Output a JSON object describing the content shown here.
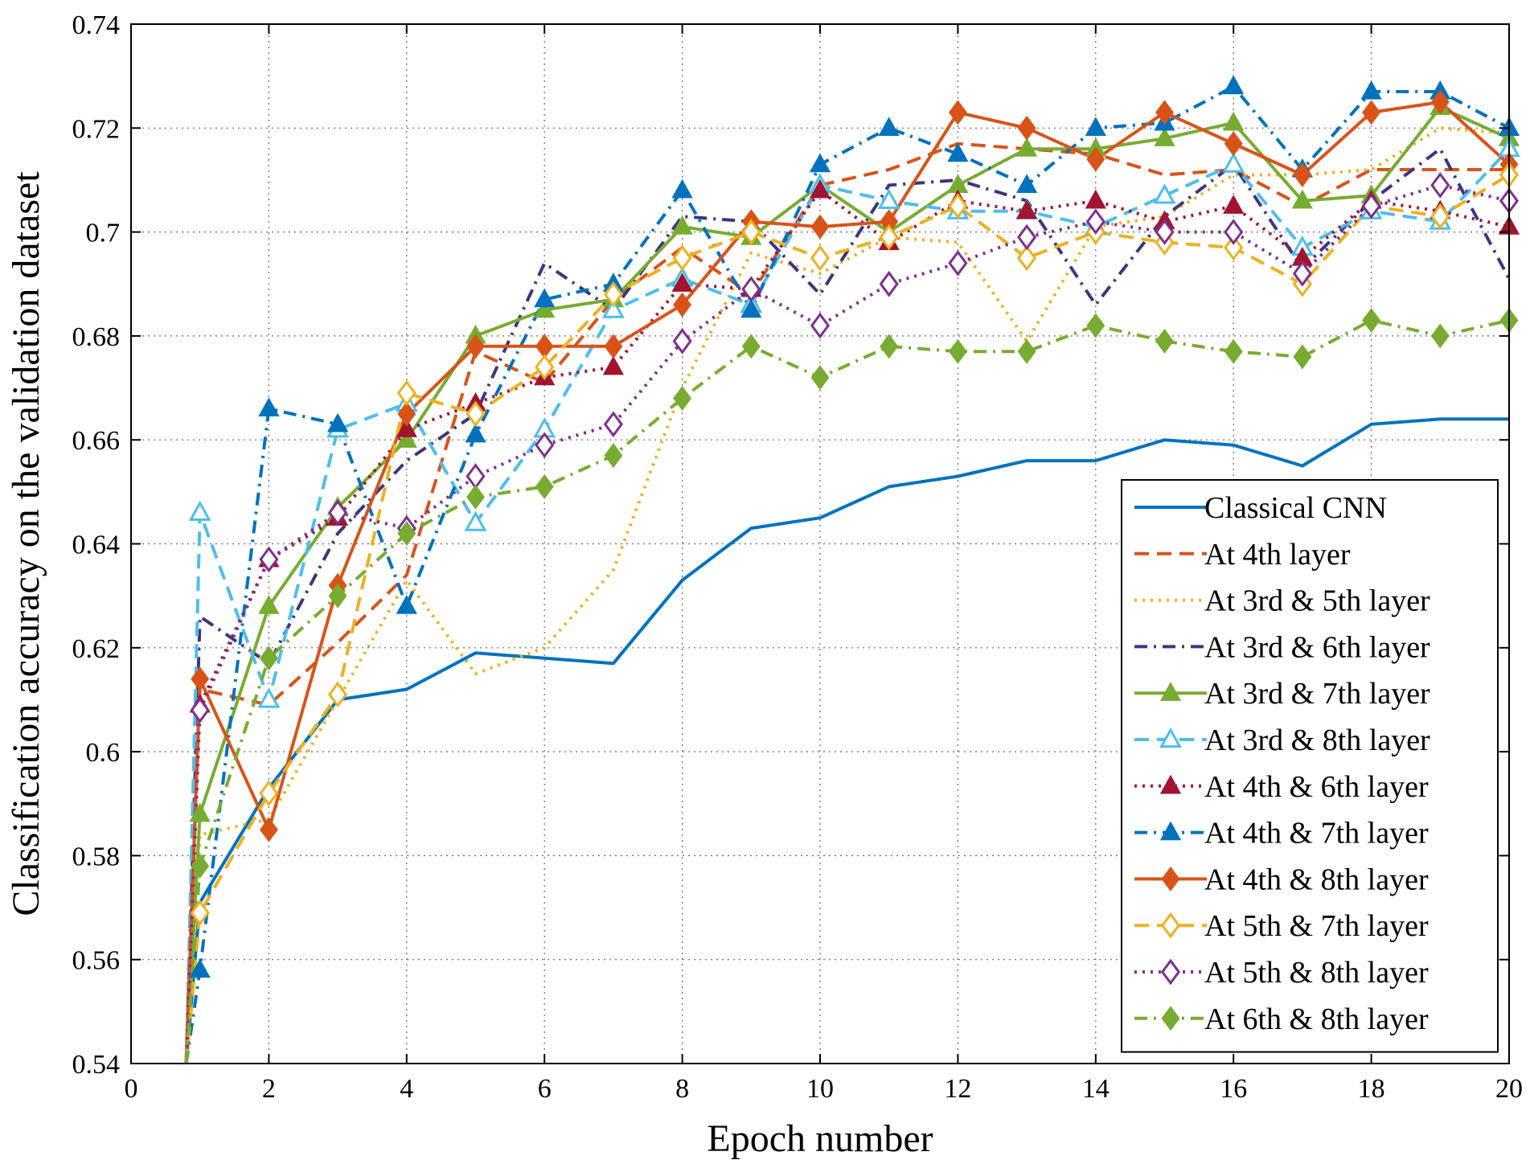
{
  "chart_data": {
    "type": "line",
    "title": "",
    "xlabel": "Epoch number",
    "ylabel": "Classification accuracy on the validation dataset",
    "xlim": [
      0,
      20
    ],
    "ylim": [
      0.54,
      0.74
    ],
    "xticks": [
      0,
      2,
      4,
      6,
      8,
      10,
      12,
      14,
      16,
      18,
      20
    ],
    "yticks": [
      0.54,
      0.56,
      0.58,
      0.6,
      0.62,
      0.64,
      0.66,
      0.68,
      0.7,
      0.72,
      0.74
    ],
    "xtick_labels": [
      "0",
      "2",
      "4",
      "6",
      "8",
      "10",
      "12",
      "14",
      "16",
      "18",
      "20"
    ],
    "ytick_labels": [
      "0.54",
      "0.56",
      "0.58",
      "0.6",
      "0.62",
      "0.64",
      "0.66",
      "0.68",
      "0.7",
      "0.72",
      "0.74"
    ],
    "grid": "dotted",
    "legend_position": "right",
    "x": [
      1,
      2,
      3,
      4,
      5,
      6,
      7,
      8,
      9,
      10,
      11,
      12,
      13,
      14,
      15,
      16,
      17,
      18,
      19,
      20
    ],
    "series": [
      {
        "name": "Classical CNN",
        "color": "#0072BD",
        "dash": "solid",
        "marker": "none",
        "start": [
          0.8,
          0.54
        ],
        "values": [
          0.571,
          0.593,
          0.61,
          0.612,
          0.619,
          0.618,
          0.617,
          0.633,
          0.643,
          0.645,
          0.651,
          0.653,
          0.656,
          0.656,
          0.66,
          0.659,
          0.655,
          0.663,
          0.664,
          0.664
        ]
      },
      {
        "name": "At 4th layer",
        "color": "#D95319",
        "dash": "dashed",
        "marker": "none",
        "start": [
          0.8,
          0.54
        ],
        "values": [
          0.612,
          0.609,
          0.621,
          0.634,
          0.677,
          0.671,
          0.687,
          0.697,
          0.688,
          0.709,
          0.712,
          0.717,
          0.716,
          0.715,
          0.711,
          0.712,
          0.705,
          0.712,
          0.712,
          0.712
        ]
      },
      {
        "name": "At 3rd & 5th layer",
        "color": "#EDB120",
        "dash": "dotted",
        "marker": "none",
        "start": [
          0.8,
          0.54
        ],
        "values": [
          0.584,
          0.587,
          0.61,
          0.633,
          0.615,
          0.62,
          0.635,
          0.67,
          0.696,
          0.692,
          0.699,
          0.698,
          0.679,
          0.701,
          0.703,
          0.711,
          0.711,
          0.712,
          0.72,
          0.719
        ]
      },
      {
        "name": "At 3rd & 6th layer",
        "color": "#3B3680",
        "dash": "dashdot",
        "marker": "none",
        "start": [
          0.8,
          0.54
        ],
        "values": [
          0.626,
          0.617,
          0.642,
          0.656,
          0.665,
          0.694,
          0.685,
          0.703,
          0.702,
          0.688,
          0.709,
          0.71,
          0.706,
          0.686,
          0.703,
          0.713,
          0.693,
          0.706,
          0.716,
          0.691
        ]
      },
      {
        "name": "At 3rd & 7th layer",
        "color": "#77AC30",
        "dash": "solid",
        "marker": "triangle-filled",
        "start": [
          0.8,
          0.54
        ],
        "values": [
          0.588,
          0.628,
          0.647,
          0.66,
          0.68,
          0.685,
          0.687,
          0.701,
          0.699,
          0.709,
          0.7,
          0.709,
          0.716,
          0.716,
          0.718,
          0.721,
          0.706,
          0.707,
          0.724,
          0.718
        ]
      },
      {
        "name": "At 3rd & 8th layer",
        "color": "#4DBEEE",
        "dash": "dashed",
        "marker": "triangle-open",
        "start": [
          0.8,
          0.54
        ],
        "values": [
          0.646,
          0.61,
          0.662,
          0.667,
          0.644,
          0.662,
          0.685,
          0.691,
          0.686,
          0.709,
          0.706,
          0.704,
          0.704,
          0.701,
          0.707,
          0.713,
          0.697,
          0.704,
          0.702,
          0.716
        ]
      },
      {
        "name": "At 4th & 6th layer",
        "color": "#A2142F",
        "dash": "dotted",
        "marker": "triangle-filled",
        "start": [
          0.8,
          0.54
        ],
        "values": [
          0.609,
          0.637,
          0.645,
          0.662,
          0.667,
          0.672,
          0.674,
          0.69,
          0.689,
          0.708,
          0.698,
          0.706,
          0.704,
          0.706,
          0.702,
          0.705,
          0.695,
          0.706,
          0.704,
          0.701
        ]
      },
      {
        "name": "At 4th & 7th layer",
        "color": "#0072BD",
        "dash": "dashdot",
        "marker": "triangle-filled",
        "start": [
          0.8,
          0.54
        ],
        "values": [
          0.558,
          0.666,
          0.663,
          0.628,
          0.661,
          0.687,
          0.69,
          0.708,
          0.685,
          0.713,
          0.72,
          0.715,
          0.709,
          0.72,
          0.721,
          0.728,
          0.712,
          0.727,
          0.727,
          0.72
        ]
      },
      {
        "name": "At 4th & 8th layer",
        "color": "#D95319",
        "dash": "solid",
        "marker": "diamond-filled",
        "start": [
          0.8,
          0.54
        ],
        "values": [
          0.614,
          0.585,
          0.632,
          0.665,
          0.678,
          0.678,
          0.678,
          0.686,
          0.702,
          0.701,
          0.702,
          0.723,
          0.72,
          0.714,
          0.723,
          0.717,
          0.711,
          0.723,
          0.725,
          0.713
        ]
      },
      {
        "name": "At 5th & 7th layer",
        "color": "#EDB120",
        "dash": "dashed",
        "marker": "diamond-open",
        "start": [
          0.8,
          0.54
        ],
        "values": [
          0.569,
          0.592,
          0.611,
          0.669,
          0.665,
          0.674,
          0.688,
          0.695,
          0.7,
          0.695,
          0.699,
          0.705,
          0.695,
          0.7,
          0.698,
          0.697,
          0.69,
          0.705,
          0.703,
          0.711
        ]
      },
      {
        "name": "At 5th & 8th layer",
        "color": "#7E2F8E",
        "dash": "dotted",
        "marker": "diamond-open",
        "start": [
          0.8,
          0.54
        ],
        "values": [
          0.608,
          0.637,
          0.646,
          0.643,
          0.653,
          0.659,
          0.663,
          0.679,
          0.689,
          0.682,
          0.69,
          0.694,
          0.699,
          0.702,
          0.7,
          0.7,
          0.692,
          0.705,
          0.709,
          0.706
        ]
      },
      {
        "name": "At 6th & 8th layer",
        "color": "#77AC30",
        "dash": "dashdot",
        "marker": "diamond-filled",
        "start": [
          0.8,
          0.54
        ],
        "values": [
          0.578,
          0.618,
          0.63,
          0.642,
          0.649,
          0.651,
          0.657,
          0.668,
          0.678,
          0.672,
          0.678,
          0.677,
          0.677,
          0.682,
          0.679,
          0.677,
          0.676,
          0.683,
          0.68,
          0.683
        ]
      }
    ]
  }
}
